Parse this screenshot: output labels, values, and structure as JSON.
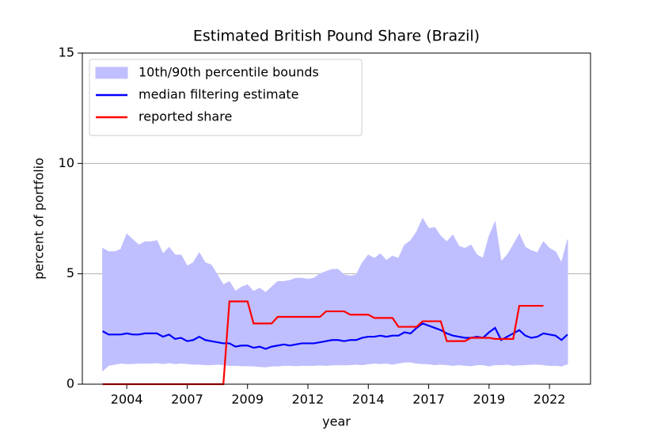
{
  "chart_data": {
    "type": "line",
    "title": "Estimated British Pound Share (Brazil)",
    "xlabel": "year",
    "ylabel": "percent of portfolio",
    "x": [
      2003.0,
      2003.25,
      2003.5,
      2003.75,
      2004.0,
      2004.25,
      2004.5,
      2004.75,
      2005.0,
      2005.25,
      2005.5,
      2005.75,
      2006.0,
      2006.25,
      2006.5,
      2006.75,
      2007.0,
      2007.25,
      2007.5,
      2007.75,
      2008.0,
      2008.25,
      2008.5,
      2008.75,
      2009.0,
      2009.25,
      2009.5,
      2009.75,
      2010.0,
      2010.25,
      2010.5,
      2010.75,
      2011.0,
      2011.25,
      2011.5,
      2011.75,
      2012.0,
      2012.25,
      2012.5,
      2012.75,
      2013.0,
      2013.25,
      2013.5,
      2013.75,
      2014.0,
      2014.25,
      2014.5,
      2014.75,
      2015.0,
      2015.25,
      2015.5,
      2015.75,
      2016.0,
      2016.25,
      2016.5,
      2016.75,
      2017.0,
      2017.25,
      2017.5,
      2017.75,
      2018.0,
      2018.25,
      2018.5,
      2018.75,
      2019.0,
      2019.25,
      2019.5,
      2019.75,
      2020.0,
      2020.25,
      2020.5,
      2020.75,
      2021.0,
      2021.25,
      2021.5,
      2021.75,
      2022.0,
      2022.25
    ],
    "series": [
      {
        "name": "10th/90th percentile bounds",
        "kind": "band",
        "color": "#bfbfff",
        "upper": [
          6.15,
          6.0,
          6.0,
          6.1,
          6.8,
          6.55,
          6.3,
          6.45,
          6.45,
          6.5,
          5.9,
          6.2,
          5.85,
          5.85,
          5.35,
          5.5,
          5.95,
          5.5,
          5.4,
          4.95,
          4.5,
          4.65,
          4.2,
          4.4,
          4.5,
          4.2,
          4.35,
          4.15,
          4.4,
          4.65,
          4.65,
          4.7,
          4.8,
          4.8,
          4.75,
          4.8,
          5.0,
          5.1,
          5.2,
          5.2,
          4.95,
          4.9,
          4.95,
          5.5,
          5.85,
          5.7,
          5.9,
          5.6,
          5.8,
          5.7,
          6.3,
          6.5,
          6.9,
          7.5,
          7.05,
          7.1,
          6.7,
          6.45,
          6.75,
          6.25,
          6.15,
          6.3,
          5.85,
          5.7,
          6.7,
          7.35,
          5.55,
          5.85,
          6.3,
          6.8,
          6.2,
          6.05,
          5.95,
          6.45,
          6.15,
          6.0,
          5.5,
          6.55
        ],
        "lower": [
          0.6,
          0.85,
          0.9,
          0.95,
          0.93,
          0.93,
          0.95,
          0.95,
          0.95,
          0.97,
          0.93,
          0.97,
          0.93,
          0.95,
          0.93,
          0.9,
          0.9,
          0.88,
          0.88,
          0.9,
          0.88,
          0.85,
          0.85,
          0.83,
          0.83,
          0.82,
          0.8,
          0.78,
          0.82,
          0.82,
          0.85,
          0.85,
          0.83,
          0.85,
          0.85,
          0.85,
          0.87,
          0.85,
          0.87,
          0.88,
          0.87,
          0.88,
          0.9,
          0.88,
          0.92,
          0.95,
          0.93,
          0.95,
          0.9,
          0.95,
          1.0,
          1.0,
          0.95,
          0.93,
          0.92,
          0.88,
          0.9,
          0.88,
          0.85,
          0.88,
          0.85,
          0.83,
          0.88,
          0.88,
          0.82,
          0.88,
          0.88,
          0.9,
          0.85,
          0.87,
          0.88,
          0.9,
          0.9,
          0.88,
          0.85,
          0.85,
          0.82,
          0.92
        ]
      },
      {
        "name": "median filtering estimate",
        "color": "#0000ff",
        "values": [
          2.4,
          2.25,
          2.25,
          2.25,
          2.3,
          2.25,
          2.25,
          2.3,
          2.3,
          2.3,
          2.15,
          2.25,
          2.05,
          2.1,
          1.95,
          2.0,
          2.15,
          2.0,
          1.95,
          1.9,
          1.85,
          1.85,
          1.7,
          1.75,
          1.75,
          1.65,
          1.7,
          1.6,
          1.7,
          1.75,
          1.8,
          1.75,
          1.8,
          1.85,
          1.85,
          1.85,
          1.9,
          1.95,
          2.0,
          2.0,
          1.95,
          2.0,
          2.0,
          2.1,
          2.15,
          2.15,
          2.2,
          2.15,
          2.2,
          2.2,
          2.35,
          2.3,
          2.55,
          2.75,
          2.65,
          2.55,
          2.45,
          2.3,
          2.2,
          2.15,
          2.1,
          2.1,
          2.15,
          2.1,
          2.35,
          2.55,
          2.0,
          2.15,
          2.3,
          2.45,
          2.2,
          2.1,
          2.15,
          2.3,
          2.25,
          2.2,
          2.0,
          2.25
        ]
      },
      {
        "name": "reported share",
        "color": "#ff0000",
        "values": [
          0,
          0,
          0,
          0,
          0,
          0,
          0,
          0,
          0,
          0,
          0,
          0,
          0,
          0,
          0,
          0,
          0,
          0,
          0,
          0,
          0,
          3.75,
          3.75,
          3.75,
          3.75,
          2.75,
          2.75,
          2.75,
          2.75,
          3.05,
          3.05,
          3.05,
          3.05,
          3.05,
          3.05,
          3.05,
          3.05,
          3.3,
          3.3,
          3.3,
          3.3,
          3.15,
          3.15,
          3.15,
          3.15,
          3.0,
          3.0,
          3.0,
          3.0,
          2.6,
          2.6,
          2.6,
          2.6,
          2.85,
          2.85,
          2.85,
          2.85,
          1.95,
          1.95,
          1.95,
          1.95,
          2.1,
          2.1,
          2.1,
          2.1,
          2.05,
          2.05,
          2.05,
          2.05,
          3.55,
          3.55,
          3.55,
          3.55,
          3.55,
          null,
          null,
          null,
          null
        ]
      }
    ],
    "xlim": [
      2002.16,
      2023.2
    ],
    "ylim": [
      0,
      15
    ],
    "xticks": [
      2004,
      {
        "value": 2006.5,
        "label": "2007"
      },
      2009,
      {
        "value": 2011.5,
        "label": "2012"
      },
      2014,
      {
        "value": 2016.5,
        "label": "2017"
      },
      2019,
      {
        "value": 2021.5,
        "label": "2022"
      }
    ],
    "yticks": [
      0,
      5,
      10,
      15
    ],
    "grid": true,
    "legend": "upper left"
  }
}
